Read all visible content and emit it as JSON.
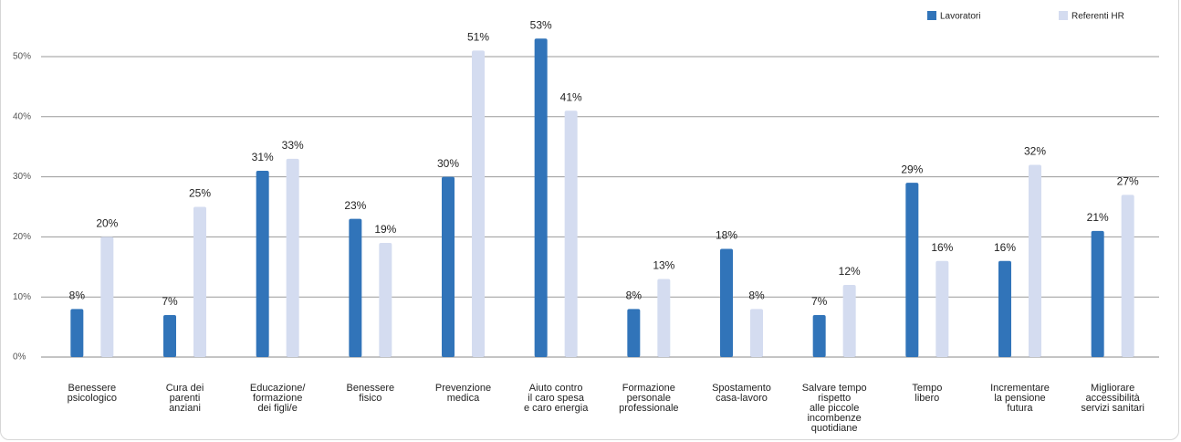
{
  "chart_data": {
    "type": "bar",
    "categories": [
      "Benessere\npsicologico",
      "Cura dei\nparenti\nanziani",
      "Educazione/\nformazione\ndei figli/e",
      "Benessere\nfisico",
      "Prevenzione\nmedica",
      "Aiuto contro\nil caro spesa\ne caro energia",
      "Formazione\npersonale\nprofessionale",
      "Spostamento\ncasa-lavoro",
      "Salvare tempo\nrispetto\nalle piccole\nincombenze\nquotidiane",
      "Tempo\nlibero",
      "Incrementare\nla pensione\nfutura",
      "Migliorare\naccessibilità\nservizi sanitari"
    ],
    "series": [
      {
        "name": "Lavoratori",
        "color": "#3174b9",
        "values": [
          8,
          7,
          31,
          23,
          30,
          53,
          8,
          18,
          7,
          29,
          16,
          21
        ],
        "value_labels": [
          "8%",
          "7%",
          "31%",
          "23%",
          "30%",
          "53%",
          "8%",
          "18%",
          "7%",
          "29%",
          "16%",
          "21%"
        ]
      },
      {
        "name": "Referenti HR",
        "color": "#d4dcf0",
        "values": [
          20,
          25,
          33,
          19,
          51,
          41,
          13,
          8,
          12,
          16,
          32,
          27
        ],
        "value_labels": [
          "20%",
          "25%",
          "33%",
          "19%",
          "51%",
          "41%",
          "13%",
          "8%",
          "12%",
          "16%",
          "32%",
          "27%"
        ]
      }
    ],
    "ylim": [
      0,
      55
    ],
    "yticks": [
      {
        "value": 0,
        "label": "0%"
      },
      {
        "value": 10,
        "label": "10%"
      },
      {
        "value": 20,
        "label": "20%"
      },
      {
        "value": 30,
        "label": "30%"
      },
      {
        "value": 40,
        "label": "40%"
      },
      {
        "value": 50,
        "label": "50%"
      }
    ],
    "grid": true,
    "legend": "top-right"
  }
}
